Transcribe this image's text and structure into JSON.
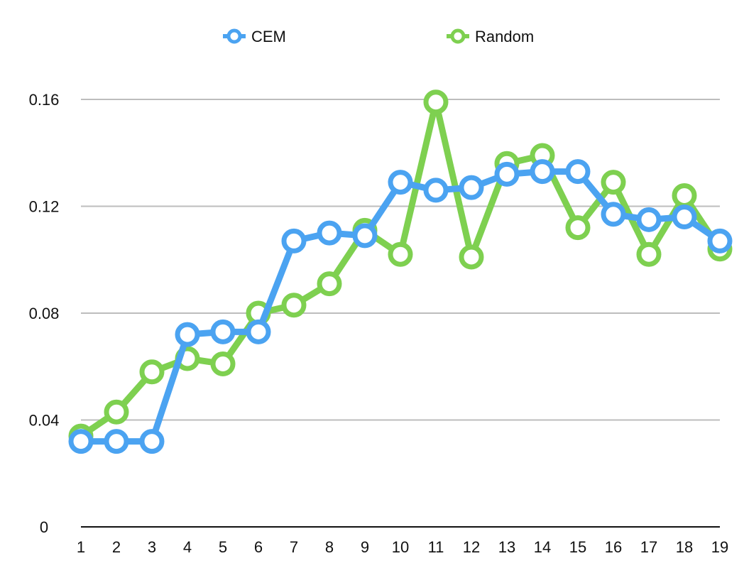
{
  "chart_data": {
    "type": "line",
    "title": "",
    "xlabel": "",
    "ylabel": "",
    "categories": [
      "1",
      "2",
      "3",
      "4",
      "5",
      "6",
      "7",
      "8",
      "9",
      "10",
      "11",
      "12",
      "13",
      "14",
      "15",
      "16",
      "17",
      "18",
      "19"
    ],
    "yticks": [
      "0",
      "0.04",
      "0.08",
      "0.12",
      "0.16"
    ],
    "ylim": [
      0,
      0.16
    ],
    "grid": true,
    "legend_position": "top",
    "series": [
      {
        "name": "CEM",
        "color": "#4ba3f1",
        "values": [
          0.032,
          0.032,
          0.032,
          0.072,
          0.073,
          0.073,
          0.107,
          0.11,
          0.109,
          0.129,
          0.126,
          0.127,
          0.132,
          0.133,
          0.133,
          0.117,
          0.115,
          0.116,
          0.107
        ]
      },
      {
        "name": "Random",
        "color": "#7ed050",
        "values": [
          0.034,
          0.043,
          0.058,
          0.063,
          0.061,
          0.08,
          0.083,
          0.091,
          0.111,
          0.102,
          0.159,
          0.101,
          0.136,
          0.139,
          0.112,
          0.129,
          0.102,
          0.124,
          0.104
        ]
      }
    ]
  }
}
